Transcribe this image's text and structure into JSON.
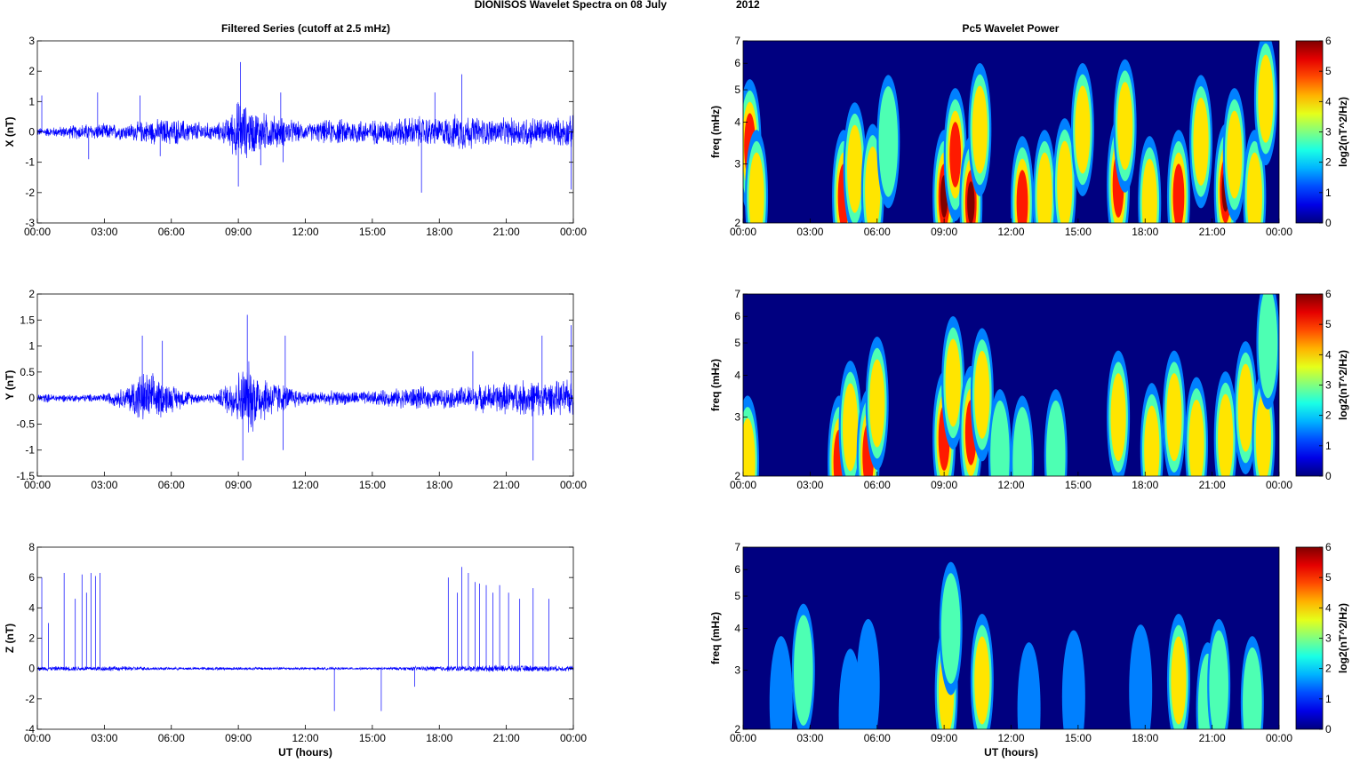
{
  "figure": {
    "title_main": "DIONISOS Wavelet Spectra on 08 July",
    "title_year": "2012",
    "left_column_title": "Filtered Series (cutoff at 2.5 mHz)",
    "right_column_title": "Pc5 Wavelet Power",
    "time_xlabel": "UT (hours)"
  },
  "chart_data": [
    {
      "type": "line",
      "panel": "X",
      "ylabel": "X (nT)",
      "xlim_hours": [
        0,
        24
      ],
      "x_ticks": [
        "00:00",
        "03:00",
        "06:00",
        "09:00",
        "12:00",
        "15:00",
        "18:00",
        "21:00",
        "00:00"
      ],
      "ylim": [
        -3,
        3
      ],
      "y_ticks": [
        3,
        2,
        1,
        0,
        -1,
        -2,
        -3
      ],
      "series_color": "#0000ff",
      "envelope": {
        "hours": [
          0,
          1,
          2,
          3,
          4,
          5,
          6,
          7,
          8,
          8.5,
          9,
          9.5,
          10,
          11,
          12,
          13,
          14,
          15,
          16,
          17,
          18,
          19,
          20,
          21,
          22,
          23,
          24
        ],
        "amplitude": [
          0.15,
          0.2,
          0.3,
          0.3,
          0.3,
          0.45,
          0.5,
          0.4,
          0.3,
          0.5,
          1.2,
          0.9,
          0.75,
          0.55,
          0.3,
          0.45,
          0.5,
          0.45,
          0.5,
          0.6,
          0.5,
          0.7,
          0.5,
          0.5,
          0.6,
          0.5,
          0.6
        ]
      },
      "spikes": [
        [
          0.2,
          1.2
        ],
        [
          2.7,
          1.3
        ],
        [
          2.3,
          -0.9
        ],
        [
          4.6,
          1.2
        ],
        [
          5.5,
          -0.8
        ],
        [
          9.1,
          2.3
        ],
        [
          9.0,
          -1.8
        ],
        [
          10.0,
          -1.1
        ],
        [
          10.9,
          1.3
        ],
        [
          11.0,
          -1.0
        ],
        [
          17.2,
          -2.0
        ],
        [
          17.8,
          1.3
        ],
        [
          19.0,
          1.9
        ],
        [
          23.9,
          -1.9
        ]
      ]
    },
    {
      "type": "line",
      "panel": "Y",
      "ylabel": "Y (nT)",
      "xlim_hours": [
        0,
        24
      ],
      "x_ticks": [
        "00:00",
        "03:00",
        "06:00",
        "09:00",
        "12:00",
        "15:00",
        "18:00",
        "21:00",
        "00:00"
      ],
      "ylim": [
        -1.5,
        2
      ],
      "y_ticks": [
        2,
        1.5,
        1,
        0.5,
        0,
        -0.5,
        -1,
        -1.5
      ],
      "y_tick_labels": [
        "2",
        "1.5",
        "1",
        "0.5",
        "0",
        "-0.5",
        "-1",
        "-1.5"
      ],
      "series_color": "#0000ff",
      "envelope": {
        "hours": [
          0,
          1,
          2,
          3,
          4,
          4.5,
          5,
          6,
          7,
          8,
          9,
          9.5,
          10,
          11,
          12,
          13,
          14,
          15,
          16,
          17,
          18,
          19,
          20,
          21,
          22,
          23,
          24
        ],
        "amplitude": [
          0.1,
          0.08,
          0.08,
          0.1,
          0.25,
          0.55,
          0.55,
          0.3,
          0.12,
          0.1,
          0.6,
          0.8,
          0.55,
          0.3,
          0.15,
          0.15,
          0.15,
          0.15,
          0.2,
          0.25,
          0.2,
          0.25,
          0.3,
          0.35,
          0.4,
          0.35,
          0.4
        ]
      },
      "spikes": [
        [
          4.7,
          1.2
        ],
        [
          5.6,
          1.1
        ],
        [
          9.4,
          1.6
        ],
        [
          9.2,
          -1.2
        ],
        [
          11.1,
          1.2
        ],
        [
          11.0,
          -1.0
        ],
        [
          19.5,
          0.9
        ],
        [
          22.6,
          1.2
        ],
        [
          22.2,
          -1.2
        ],
        [
          23.9,
          1.4
        ]
      ]
    },
    {
      "type": "line",
      "panel": "Z",
      "ylabel": "Z (nT)",
      "xlabel": "UT (hours)",
      "xlim_hours": [
        0,
        24
      ],
      "x_ticks": [
        "00:00",
        "03:00",
        "06:00",
        "09:00",
        "12:00",
        "15:00",
        "18:00",
        "21:00",
        "00:00"
      ],
      "ylim": [
        -4,
        8
      ],
      "y_ticks": [
        8,
        6,
        4,
        2,
        0,
        -2,
        -4
      ],
      "series_color": "#0000ff",
      "envelope": {
        "hours": [
          0,
          3,
          6,
          9,
          12,
          15,
          18,
          21,
          24
        ],
        "amplitude": [
          0.15,
          0.2,
          0.1,
          0.12,
          0.1,
          0.08,
          0.2,
          0.25,
          0.2
        ]
      },
      "spikes": [
        [
          0.2,
          6.0
        ],
        [
          0.5,
          3.0
        ],
        [
          1.2,
          6.3
        ],
        [
          1.7,
          4.6
        ],
        [
          2.0,
          6.2
        ],
        [
          2.2,
          5.0
        ],
        [
          2.4,
          6.3
        ],
        [
          2.6,
          6.1
        ],
        [
          2.8,
          6.3
        ],
        [
          13.3,
          -2.8
        ],
        [
          15.4,
          -2.8
        ],
        [
          16.9,
          -1.2
        ],
        [
          18.4,
          6.0
        ],
        [
          18.8,
          5.0
        ],
        [
          19.0,
          6.7
        ],
        [
          19.3,
          6.3
        ],
        [
          19.6,
          5.7
        ],
        [
          19.8,
          5.6
        ],
        [
          20.1,
          5.5
        ],
        [
          20.4,
          5.0
        ],
        [
          20.7,
          5.5
        ],
        [
          21.1,
          5.0
        ],
        [
          21.6,
          4.6
        ],
        [
          22.2,
          5.3
        ],
        [
          22.9,
          4.6
        ]
      ]
    },
    {
      "type": "heatmap",
      "panel": "X",
      "ylabel": "freq (mHz)",
      "xlim_hours": [
        0,
        24
      ],
      "x_ticks": [
        "00:00",
        "03:00",
        "06:00",
        "09:00",
        "12:00",
        "15:00",
        "18:00",
        "21:00",
        "00:00"
      ],
      "ylim_mhz": [
        2,
        7
      ],
      "y_scale": "log",
      "y_ticks": [
        2,
        3,
        4,
        5,
        6,
        7
      ],
      "colorbar": {
        "label": "log2(nT^2/Hz)",
        "range": [
          0,
          6
        ],
        "ticks": [
          0,
          1,
          2,
          3,
          4,
          5,
          6
        ],
        "colormap": "jet"
      },
      "blobs_hours_mhz_power": [
        [
          0.3,
          3.4,
          5.5
        ],
        [
          0.6,
          2.4,
          4.5
        ],
        [
          4.5,
          2.4,
          5.5
        ],
        [
          5.0,
          2.9,
          4.5
        ],
        [
          5.8,
          2.5,
          4.0
        ],
        [
          6.5,
          3.5,
          3.5
        ],
        [
          9.0,
          2.4,
          6.0
        ],
        [
          9.5,
          3.2,
          5.5
        ],
        [
          10.2,
          2.3,
          6.0
        ],
        [
          10.6,
          3.8,
          5.0
        ],
        [
          12.5,
          2.3,
          5.5
        ],
        [
          13.5,
          2.4,
          5.0
        ],
        [
          14.4,
          2.6,
          5.0
        ],
        [
          15.2,
          3.8,
          5.0
        ],
        [
          16.8,
          2.6,
          5.5
        ],
        [
          17.1,
          3.9,
          5.0
        ],
        [
          18.2,
          2.3,
          5.0
        ],
        [
          19.5,
          2.4,
          5.5
        ],
        [
          20.5,
          3.5,
          5.0
        ],
        [
          21.6,
          2.5,
          6.0
        ],
        [
          22.0,
          3.2,
          5.0
        ],
        [
          22.9,
          2.4,
          4.5
        ],
        [
          23.4,
          4.7,
          4.5
        ]
      ]
    },
    {
      "type": "heatmap",
      "panel": "Y",
      "ylabel": "freq (mHz)",
      "xlim_hours": [
        0,
        24
      ],
      "x_ticks": [
        "00:00",
        "03:00",
        "06:00",
        "09:00",
        "12:00",
        "15:00",
        "18:00",
        "21:00",
        "00:00"
      ],
      "ylim_mhz": [
        2,
        7
      ],
      "y_scale": "log",
      "y_ticks": [
        2,
        3,
        4,
        5,
        6,
        7
      ],
      "colorbar": {
        "label": "log2(nT^2/Hz)",
        "range": [
          0,
          6
        ],
        "ticks": [
          0,
          1,
          2,
          3,
          4,
          5,
          6
        ],
        "colormap": "jet"
      },
      "blobs_hours_mhz_power": [
        [
          0.2,
          2.2,
          4.5
        ],
        [
          4.3,
          2.2,
          5.5
        ],
        [
          4.8,
          2.8,
          5.0
        ],
        [
          5.6,
          2.3,
          5.5
        ],
        [
          6.0,
          3.3,
          4.0
        ],
        [
          9.0,
          2.6,
          5.5
        ],
        [
          9.4,
          3.8,
          5.0
        ],
        [
          10.2,
          2.7,
          5.5
        ],
        [
          10.7,
          3.5,
          4.5
        ],
        [
          11.5,
          2.3,
          3.0
        ],
        [
          12.5,
          2.2,
          3.0
        ],
        [
          14.0,
          2.3,
          3.0
        ],
        [
          16.8,
          3.0,
          5.0
        ],
        [
          18.3,
          2.4,
          4.0
        ],
        [
          19.3,
          3.0,
          4.5
        ],
        [
          20.3,
          2.5,
          4.5
        ],
        [
          21.6,
          2.6,
          5.0
        ],
        [
          22.5,
          3.2,
          4.0
        ],
        [
          23.3,
          2.6,
          5.0
        ],
        [
          23.5,
          5.0,
          3.0
        ]
      ]
    },
    {
      "type": "heatmap",
      "panel": "Z",
      "ylabel": "freq (mHz)",
      "xlabel": "UT (hours)",
      "xlim_hours": [
        0,
        24
      ],
      "x_ticks": [
        "00:00",
        "03:00",
        "06:00",
        "09:00",
        "12:00",
        "15:00",
        "18:00",
        "21:00",
        "00:00"
      ],
      "ylim_mhz": [
        2,
        7
      ],
      "y_scale": "log",
      "y_ticks": [
        2,
        3,
        4,
        5,
        6,
        7
      ],
      "colorbar": {
        "label": "log2(nT^2/Hz)",
        "range": [
          0,
          6
        ],
        "ticks": [
          0,
          1,
          2,
          3,
          4,
          5,
          6
        ],
        "colormap": "jet"
      },
      "blobs_hours_mhz_power": [
        [
          1.7,
          2.4,
          2.5
        ],
        [
          2.7,
          3.0,
          3.0
        ],
        [
          4.8,
          2.2,
          2.5
        ],
        [
          5.6,
          2.7,
          2.5
        ],
        [
          9.1,
          2.6,
          5.0
        ],
        [
          9.3,
          4.0,
          3.5
        ],
        [
          10.7,
          2.8,
          5.0
        ],
        [
          12.8,
          2.3,
          2.0
        ],
        [
          14.8,
          2.5,
          2.0
        ],
        [
          17.8,
          2.6,
          2.5
        ],
        [
          19.5,
          2.8,
          4.5
        ],
        [
          20.8,
          2.3,
          3.0
        ],
        [
          21.3,
          2.7,
          3.5
        ],
        [
          22.8,
          2.4,
          3.0
        ]
      ]
    }
  ]
}
